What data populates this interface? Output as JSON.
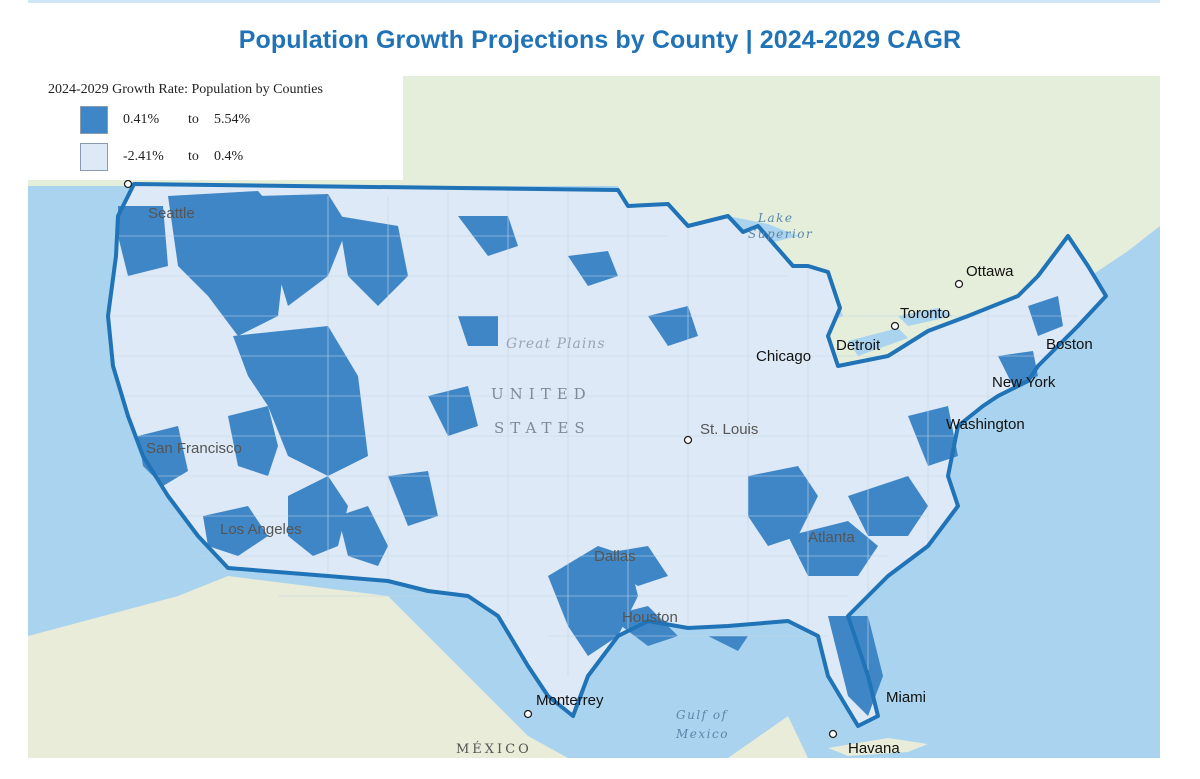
{
  "title": "Population Growth Projections by County | 2024-2029 CAGR",
  "legend": {
    "title": "2024-2029 Growth Rate: Population by Counties",
    "classes": [
      {
        "from": "0.41%",
        "to_word": "to",
        "to": "5.54%",
        "color": "#3f86c6"
      },
      {
        "from": "-2.41%",
        "to_word": "to",
        "to": "0.4%",
        "color": "#dde9f6"
      }
    ]
  },
  "colors": {
    "high_growth": "#3f86c6",
    "low_growth": "#dde9f6",
    "outline": "#1f73b6",
    "water": "#a9d3ee",
    "land_canada": "#e4eedb",
    "land_mexico": "#e8ecd8"
  },
  "places": {
    "seattle": "Seattle",
    "san_francisco": "San Francisco",
    "los_angeles": "Los Angeles",
    "dallas": "Dallas",
    "houston": "Houston",
    "st_louis": "St. Louis",
    "chicago": "Chicago",
    "detroit": "Detroit",
    "toronto": "Toronto",
    "ottawa": "Ottawa",
    "boston": "Boston",
    "new_york": "New York",
    "washington": "Washington",
    "atlanta": "Atlanta",
    "miami": "Miami",
    "havana": "Havana",
    "monterrey": "Monterrey",
    "mexico": "MÉXICO",
    "united": "UNITED",
    "states": "STATES",
    "great_plains": "Great Plains",
    "lake_superior_1": "Lake",
    "lake_superior_2": "Superior",
    "gulf_1": "Gulf of",
    "gulf_2": "Mexico"
  }
}
